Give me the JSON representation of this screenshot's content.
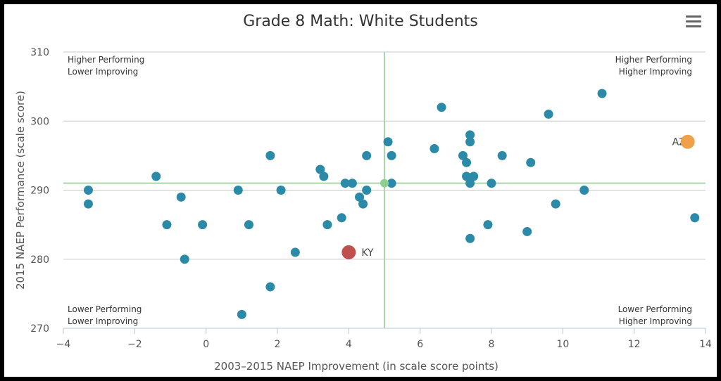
{
  "chart_data": {
    "type": "scatter",
    "title": "Grade 8 Math: White Students",
    "xlabel": "2003–2015 NAEP Improvement (in scale score points)",
    "ylabel": "2015 NAEP Performance (scale score)",
    "xlim": [
      -4,
      14
    ],
    "ylim": [
      270,
      310
    ],
    "x_ticks": [
      "−4",
      "−2",
      "0",
      "2",
      "4",
      "6",
      "8",
      "10",
      "12",
      "14"
    ],
    "y_ticks": [
      "270",
      "280",
      "290",
      "300",
      "310"
    ],
    "reference_lines": {
      "x": 5,
      "y": 291
    },
    "quadrant_labels": {
      "top_left": [
        "Higher Performing",
        "Lower Improving"
      ],
      "top_right": [
        "Higher Performing",
        "Higher Improving"
      ],
      "bottom_left": [
        "Lower Performing",
        "Lower Improving"
      ],
      "bottom_right": [
        "Lower Performing",
        "Higher Improving"
      ]
    },
    "colors": {
      "points": "#2a8aa8",
      "highlight_ky": "#c0504d",
      "highlight_az": "#f0a04b",
      "center": "#8fcf8f",
      "ref": "#a8d8a8"
    },
    "points": [
      [
        -3.3,
        290
      ],
      [
        -3.3,
        288
      ],
      [
        -1.4,
        292
      ],
      [
        -1.1,
        285
      ],
      [
        -0.7,
        289
      ],
      [
        -0.6,
        280
      ],
      [
        -0.1,
        285
      ],
      [
        0.9,
        290
      ],
      [
        1.0,
        272
      ],
      [
        1.2,
        285
      ],
      [
        1.8,
        295
      ],
      [
        1.8,
        276
      ],
      [
        2.1,
        290
      ],
      [
        2.5,
        281
      ],
      [
        3.2,
        293
      ],
      [
        3.3,
        292
      ],
      [
        3.4,
        285
      ],
      [
        3.8,
        286
      ],
      [
        3.9,
        291
      ],
      [
        4.1,
        291
      ],
      [
        4.3,
        289
      ],
      [
        4.4,
        288
      ],
      [
        4.5,
        290
      ],
      [
        4.5,
        295
      ],
      [
        5.1,
        297
      ],
      [
        5.2,
        295
      ],
      [
        5.2,
        291
      ],
      [
        6.4,
        296
      ],
      [
        6.6,
        302
      ],
      [
        7.2,
        295
      ],
      [
        7.3,
        294
      ],
      [
        7.3,
        292
      ],
      [
        7.4,
        298
      ],
      [
        7.4,
        297
      ],
      [
        7.4,
        291
      ],
      [
        7.4,
        283
      ],
      [
        7.5,
        292
      ],
      [
        7.9,
        285
      ],
      [
        8.0,
        291
      ],
      [
        8.3,
        295
      ],
      [
        9.0,
        284
      ],
      [
        9.1,
        294
      ],
      [
        9.6,
        301
      ],
      [
        9.8,
        288
      ],
      [
        10.6,
        290
      ],
      [
        11.1,
        304
      ],
      [
        13.7,
        286
      ]
    ],
    "highlights": [
      {
        "label": "KY",
        "x": 4.0,
        "y": 281,
        "color": "#c0504d"
      },
      {
        "label": "AZ",
        "x": 13.5,
        "y": 297,
        "color": "#f0a04b"
      }
    ],
    "center_point": {
      "x": 5,
      "y": 291
    }
  }
}
